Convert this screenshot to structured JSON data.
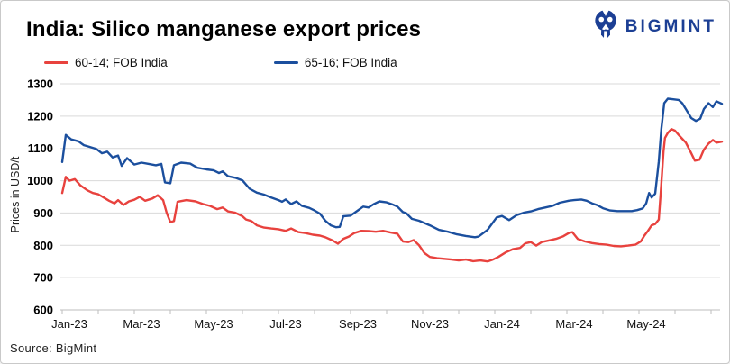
{
  "header": {
    "title": "India: Silico manganese export prices",
    "logo_text": "BIGMINT",
    "logo_color": "#1c3f94"
  },
  "legend": [
    {
      "label": "60-14; FOB India",
      "color": "#e8423e"
    },
    {
      "label": "65-16; FOB India",
      "color": "#1b4f9e"
    }
  ],
  "source": "Source: BigMint",
  "chart_data": {
    "type": "line",
    "title": "India: Silico manganese export prices",
    "xlabel": "",
    "ylabel": "Prices in USD/t",
    "ylim": [
      600,
      1300
    ],
    "y_ticks": [
      600,
      700,
      800,
      900,
      1000,
      1100,
      1200,
      1300
    ],
    "x_unit": "months since Jan-2023",
    "x_tick_labels": [
      "Jan-23",
      "Mar-23",
      "May-23",
      "Jul-23",
      "Sep-23",
      "Nov-23",
      "Jan-24",
      "Mar-24",
      "May-24"
    ],
    "x_tick_positions_months": [
      0,
      2,
      4,
      6,
      8,
      10,
      12,
      14,
      16
    ],
    "minor_x_ticks_every_month": true,
    "grid": "horizontal",
    "legend_position": "top-left",
    "series": [
      {
        "name": "60-14; FOB India",
        "color": "#e8423e",
        "points": [
          [
            0,
            962
          ],
          [
            0.1,
            1012
          ],
          [
            0.2,
            1000
          ],
          [
            0.35,
            1005
          ],
          [
            0.5,
            986
          ],
          [
            0.7,
            970
          ],
          [
            0.85,
            962
          ],
          [
            1.0,
            958
          ],
          [
            1.15,
            948
          ],
          [
            1.3,
            938
          ],
          [
            1.45,
            930
          ],
          [
            1.55,
            940
          ],
          [
            1.7,
            925
          ],
          [
            1.85,
            936
          ],
          [
            2.0,
            941
          ],
          [
            2.15,
            950
          ],
          [
            2.3,
            938
          ],
          [
            2.5,
            945
          ],
          [
            2.65,
            955
          ],
          [
            2.8,
            940
          ],
          [
            2.9,
            900
          ],
          [
            3.0,
            872
          ],
          [
            3.1,
            875
          ],
          [
            3.2,
            935
          ],
          [
            3.45,
            940
          ],
          [
            3.7,
            936
          ],
          [
            3.9,
            928
          ],
          [
            4.1,
            922
          ],
          [
            4.3,
            912
          ],
          [
            4.45,
            917
          ],
          [
            4.6,
            905
          ],
          [
            4.8,
            901
          ],
          [
            5.0,
            890
          ],
          [
            5.1,
            880
          ],
          [
            5.25,
            875
          ],
          [
            5.4,
            862
          ],
          [
            5.6,
            855
          ],
          [
            5.8,
            852
          ],
          [
            6.0,
            850
          ],
          [
            6.2,
            845
          ],
          [
            6.35,
            852
          ],
          [
            6.55,
            841
          ],
          [
            6.75,
            838
          ],
          [
            6.95,
            833
          ],
          [
            7.15,
            830
          ],
          [
            7.3,
            825
          ],
          [
            7.5,
            815
          ],
          [
            7.65,
            805
          ],
          [
            7.8,
            820
          ],
          [
            7.95,
            827
          ],
          [
            8.1,
            838
          ],
          [
            8.3,
            845
          ],
          [
            8.5,
            844
          ],
          [
            8.7,
            842
          ],
          [
            8.9,
            845
          ],
          [
            9.1,
            840
          ],
          [
            9.3,
            836
          ],
          [
            9.45,
            812
          ],
          [
            9.6,
            810
          ],
          [
            9.75,
            816
          ],
          [
            9.9,
            800
          ],
          [
            10.05,
            776
          ],
          [
            10.2,
            764
          ],
          [
            10.4,
            760
          ],
          [
            10.6,
            758
          ],
          [
            10.8,
            756
          ],
          [
            11.0,
            753
          ],
          [
            11.2,
            756
          ],
          [
            11.4,
            751
          ],
          [
            11.6,
            753
          ],
          [
            11.8,
            750
          ],
          [
            11.95,
            756
          ],
          [
            12.1,
            764
          ],
          [
            12.3,
            778
          ],
          [
            12.5,
            788
          ],
          [
            12.7,
            792
          ],
          [
            12.85,
            806
          ],
          [
            13.0,
            810
          ],
          [
            13.15,
            799
          ],
          [
            13.3,
            810
          ],
          [
            13.5,
            815
          ],
          [
            13.7,
            820
          ],
          [
            13.9,
            828
          ],
          [
            14.05,
            838
          ],
          [
            14.15,
            841
          ],
          [
            14.3,
            820
          ],
          [
            14.5,
            812
          ],
          [
            14.7,
            807
          ],
          [
            14.9,
            804
          ],
          [
            15.1,
            802
          ],
          [
            15.3,
            798
          ],
          [
            15.5,
            797
          ],
          [
            15.7,
            799
          ],
          [
            15.9,
            802
          ],
          [
            16.05,
            812
          ],
          [
            16.15,
            830
          ],
          [
            16.25,
            845
          ],
          [
            16.35,
            862
          ],
          [
            16.45,
            866
          ],
          [
            16.55,
            880
          ],
          [
            16.62,
            990
          ],
          [
            16.68,
            1090
          ],
          [
            16.72,
            1132
          ],
          [
            16.8,
            1148
          ],
          [
            16.9,
            1160
          ],
          [
            17.0,
            1155
          ],
          [
            17.1,
            1142
          ],
          [
            17.2,
            1130
          ],
          [
            17.3,
            1118
          ],
          [
            17.45,
            1085
          ],
          [
            17.55,
            1062
          ],
          [
            17.68,
            1065
          ],
          [
            17.8,
            1096
          ],
          [
            17.93,
            1115
          ],
          [
            18.05,
            1126
          ],
          [
            18.15,
            1118
          ],
          [
            18.3,
            1121
          ]
        ]
      },
      {
        "name": "65-16; FOB India",
        "color": "#1b4f9e",
        "points": [
          [
            0,
            1058
          ],
          [
            0.1,
            1142
          ],
          [
            0.25,
            1128
          ],
          [
            0.45,
            1122
          ],
          [
            0.6,
            1110
          ],
          [
            0.75,
            1105
          ],
          [
            0.95,
            1098
          ],
          [
            1.1,
            1085
          ],
          [
            1.25,
            1090
          ],
          [
            1.4,
            1072
          ],
          [
            1.55,
            1078
          ],
          [
            1.65,
            1046
          ],
          [
            1.8,
            1070
          ],
          [
            2.0,
            1050
          ],
          [
            2.2,
            1056
          ],
          [
            2.4,
            1052
          ],
          [
            2.6,
            1048
          ],
          [
            2.75,
            1052
          ],
          [
            2.85,
            995
          ],
          [
            3.0,
            992
          ],
          [
            3.1,
            1048
          ],
          [
            3.3,
            1056
          ],
          [
            3.55,
            1053
          ],
          [
            3.75,
            1040
          ],
          [
            4.0,
            1035
          ],
          [
            4.2,
            1032
          ],
          [
            4.35,
            1024
          ],
          [
            4.45,
            1029
          ],
          [
            4.6,
            1014
          ],
          [
            4.8,
            1009
          ],
          [
            5.0,
            1001
          ],
          [
            5.2,
            975
          ],
          [
            5.4,
            963
          ],
          [
            5.6,
            957
          ],
          [
            5.8,
            948
          ],
          [
            6.0,
            940
          ],
          [
            6.1,
            935
          ],
          [
            6.2,
            942
          ],
          [
            6.35,
            928
          ],
          [
            6.5,
            936
          ],
          [
            6.65,
            922
          ],
          [
            6.85,
            916
          ],
          [
            7.0,
            908
          ],
          [
            7.15,
            898
          ],
          [
            7.3,
            876
          ],
          [
            7.45,
            862
          ],
          [
            7.6,
            856
          ],
          [
            7.7,
            857
          ],
          [
            7.8,
            890
          ],
          [
            8.0,
            892
          ],
          [
            8.2,
            908
          ],
          [
            8.35,
            920
          ],
          [
            8.5,
            917
          ],
          [
            8.65,
            928
          ],
          [
            8.8,
            936
          ],
          [
            9.0,
            933
          ],
          [
            9.15,
            927
          ],
          [
            9.3,
            920
          ],
          [
            9.45,
            903
          ],
          [
            9.55,
            899
          ],
          [
            9.7,
            882
          ],
          [
            9.9,
            876
          ],
          [
            10.2,
            862
          ],
          [
            10.45,
            848
          ],
          [
            10.7,
            842
          ],
          [
            10.95,
            834
          ],
          [
            11.2,
            829
          ],
          [
            11.45,
            825
          ],
          [
            11.55,
            827
          ],
          [
            11.68,
            838
          ],
          [
            11.8,
            848
          ],
          [
            12.05,
            886
          ],
          [
            12.2,
            891
          ],
          [
            12.4,
            878
          ],
          [
            12.6,
            893
          ],
          [
            12.8,
            901
          ],
          [
            13.0,
            905
          ],
          [
            13.2,
            912
          ],
          [
            13.4,
            917
          ],
          [
            13.6,
            922
          ],
          [
            13.8,
            932
          ],
          [
            14.05,
            938
          ],
          [
            14.2,
            940
          ],
          [
            14.4,
            942
          ],
          [
            14.55,
            938
          ],
          [
            14.7,
            930
          ],
          [
            14.85,
            924
          ],
          [
            15.0,
            915
          ],
          [
            15.2,
            908
          ],
          [
            15.4,
            906
          ],
          [
            15.6,
            906
          ],
          [
            15.8,
            906
          ],
          [
            15.95,
            909
          ],
          [
            16.1,
            914
          ],
          [
            16.2,
            930
          ],
          [
            16.28,
            962
          ],
          [
            16.35,
            948
          ],
          [
            16.45,
            960
          ],
          [
            16.55,
            1060
          ],
          [
            16.62,
            1160
          ],
          [
            16.7,
            1240
          ],
          [
            16.8,
            1254
          ],
          [
            16.95,
            1252
          ],
          [
            17.1,
            1250
          ],
          [
            17.2,
            1240
          ],
          [
            17.3,
            1222
          ],
          [
            17.45,
            1194
          ],
          [
            17.58,
            1185
          ],
          [
            17.7,
            1192
          ],
          [
            17.8,
            1222
          ],
          [
            17.93,
            1240
          ],
          [
            18.05,
            1228
          ],
          [
            18.15,
            1246
          ],
          [
            18.3,
            1238
          ]
        ]
      }
    ]
  }
}
